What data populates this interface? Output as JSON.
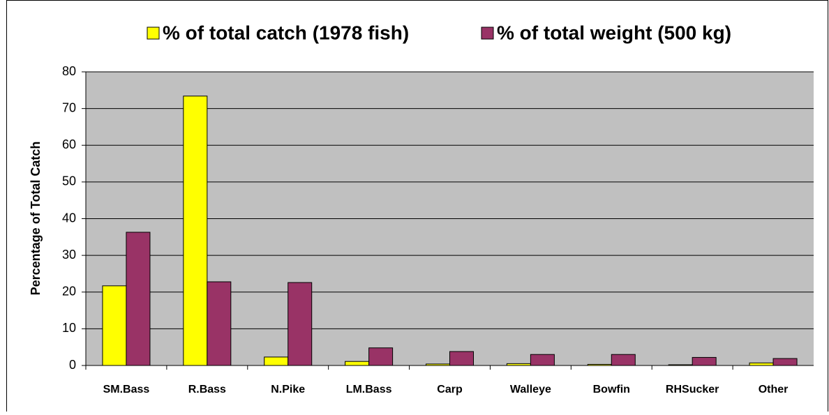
{
  "chart_data": {
    "type": "bar",
    "y_label": "Percentage of Total Catch",
    "categories": [
      "SM.Bass",
      "R.Bass",
      "N.Pike",
      "LM.Bass",
      "Carp",
      "Walleye",
      "Bowfin",
      "RHSucker",
      "Other"
    ],
    "series": [
      {
        "name": "% of total catch (1978 fish)",
        "color": "#ffff00",
        "values": [
          21.7,
          73.4,
          2.3,
          1.1,
          0.4,
          0.5,
          0.3,
          0.2,
          0.7
        ]
      },
      {
        "name": "% of total weight (500 kg)",
        "color": "#993366",
        "values": [
          36.3,
          22.8,
          22.6,
          4.8,
          3.8,
          3.0,
          3.0,
          2.2,
          1.9
        ]
      }
    ],
    "ylim": [
      0,
      80
    ],
    "yticks": [
      0,
      10,
      20,
      30,
      40,
      50,
      60,
      70,
      80
    ],
    "grid": true,
    "legend": "top",
    "plot_background": "#c0c0c0"
  }
}
